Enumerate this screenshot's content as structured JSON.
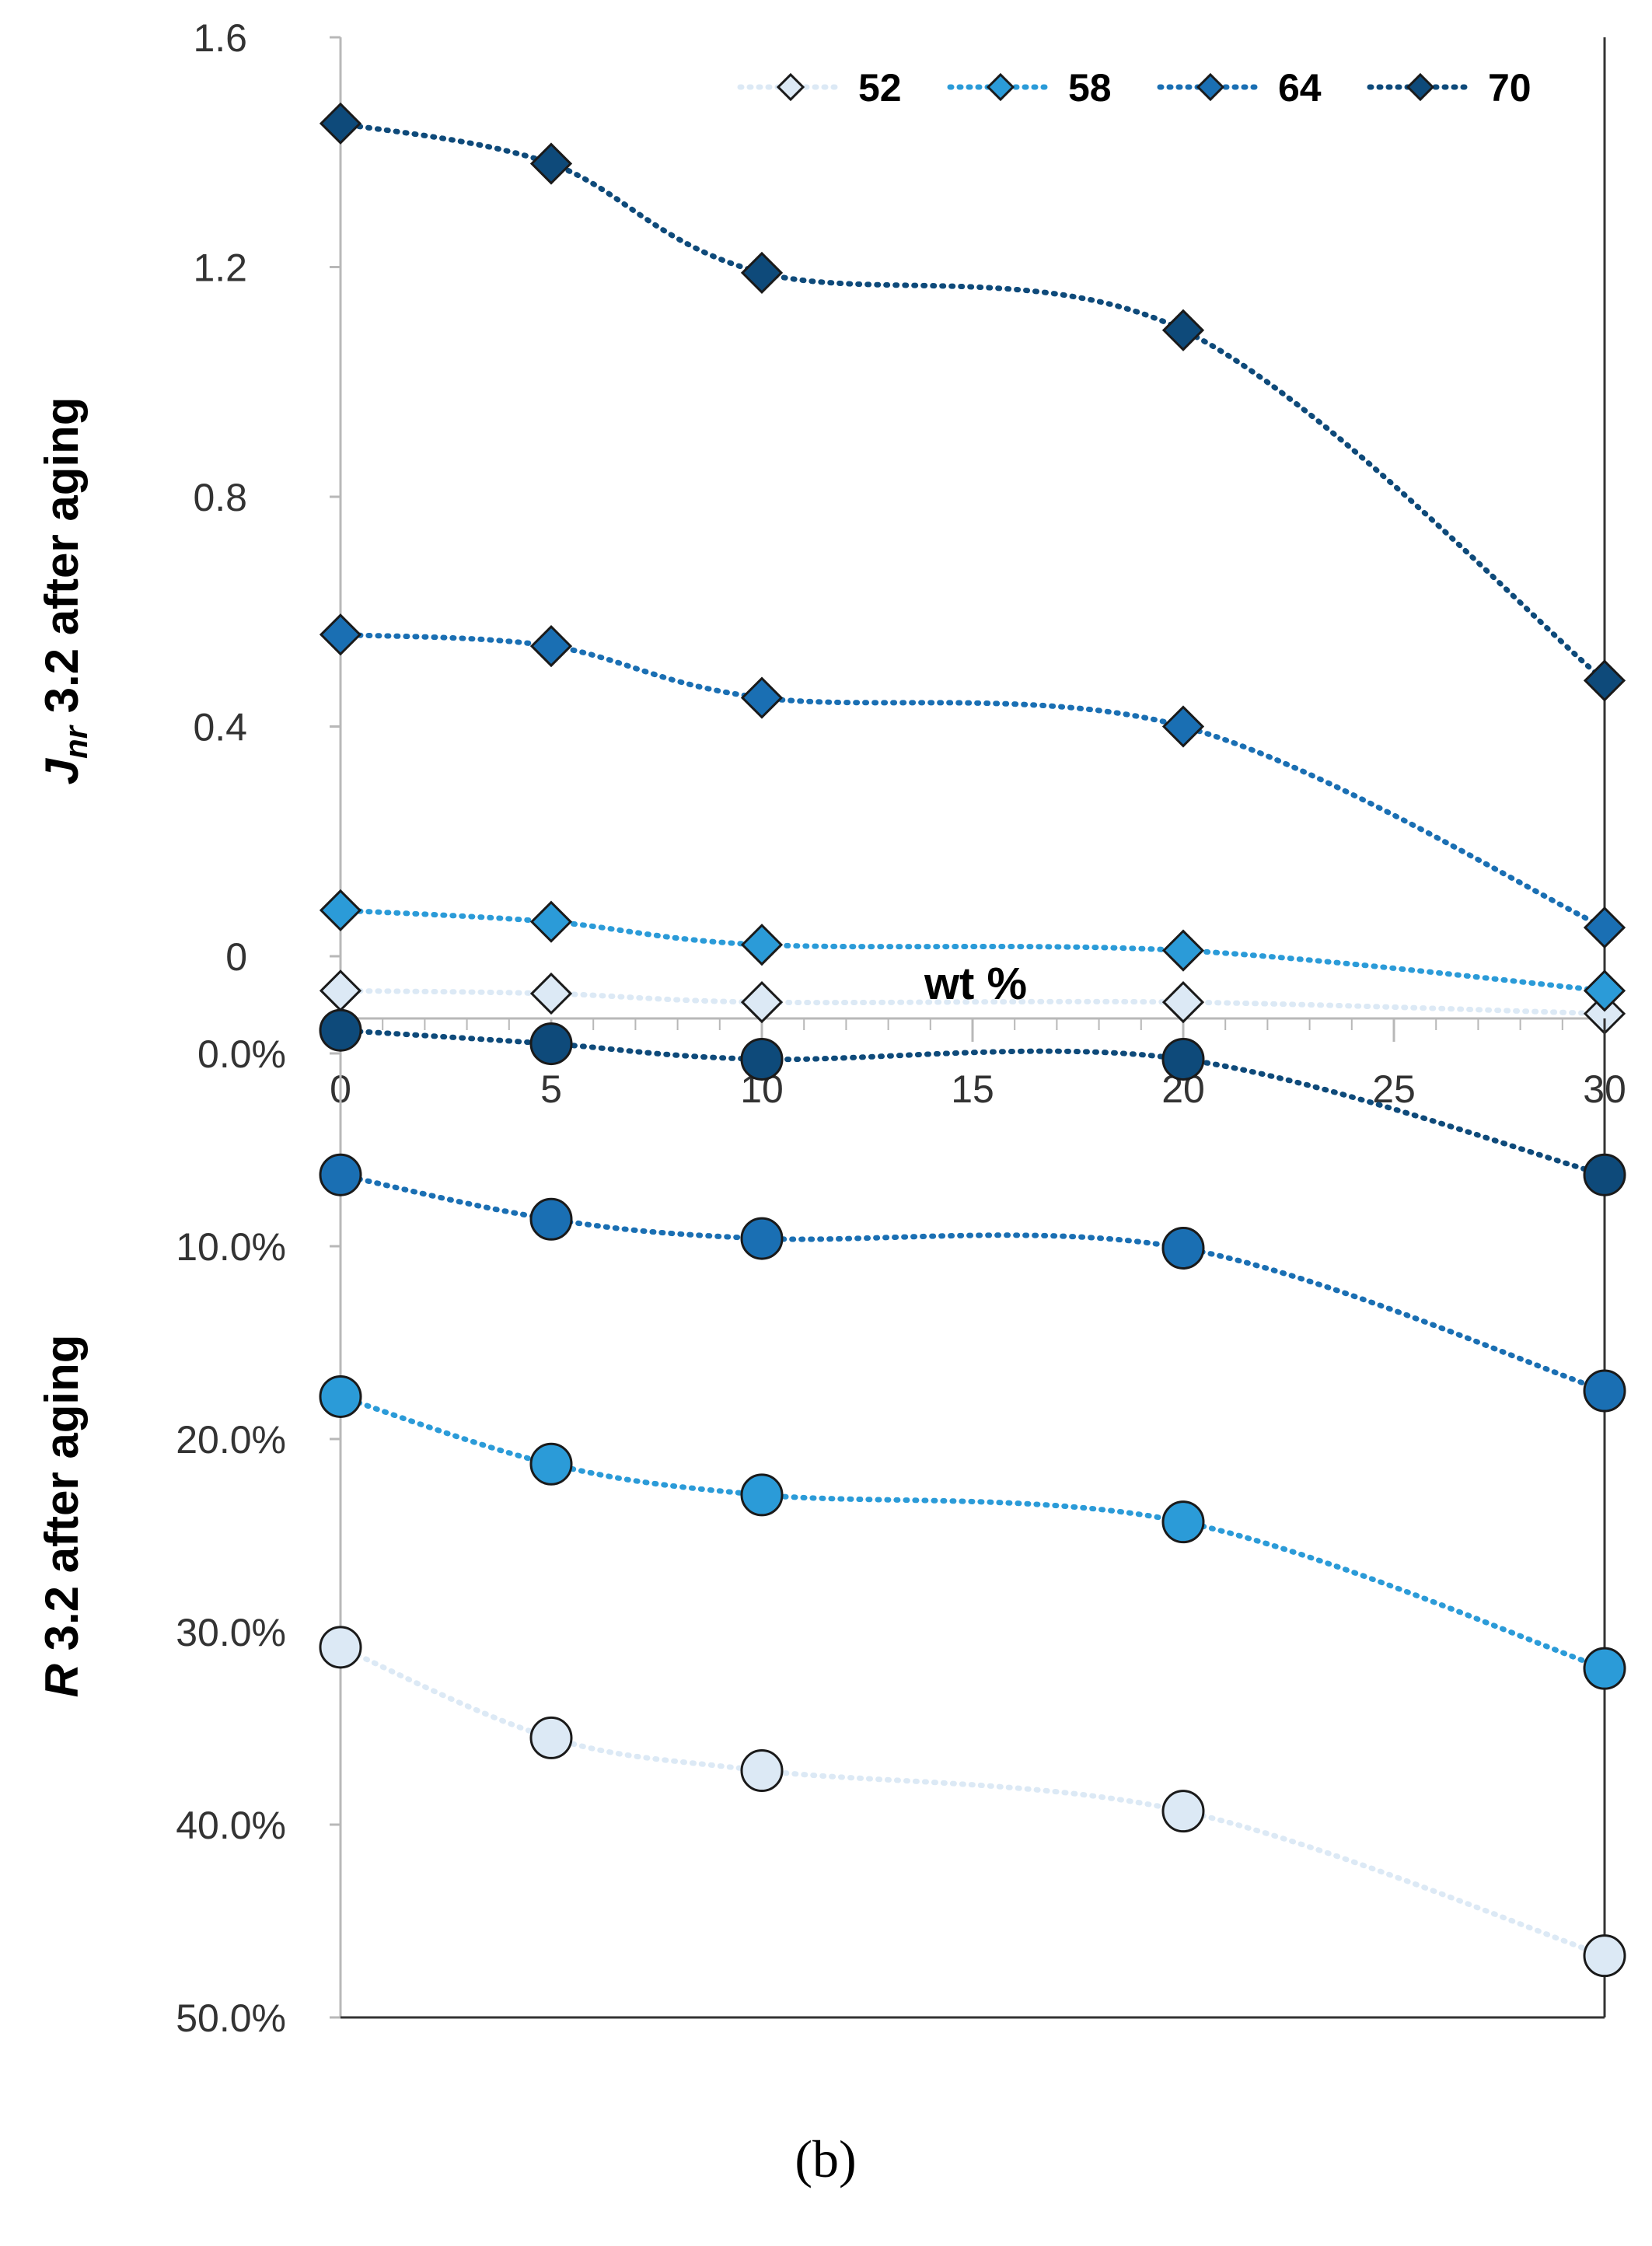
{
  "chart_data": [
    {
      "type": "line",
      "panel": "top",
      "marker": "diamond",
      "ylabel_prefix": "J",
      "ylabel_sub": "nr",
      "ylabel_rest": " 3.2 after aging",
      "xlabel": "wt %",
      "x": [
        0,
        5,
        10,
        20,
        30
      ],
      "x_ticks": [
        "0",
        "5",
        "10",
        "15",
        "20",
        "25",
        "30"
      ],
      "xlim": [
        0,
        30
      ],
      "ylim": [
        -0.1,
        1.6
      ],
      "y_ticks": [
        "1.6",
        "1.2",
        "0.8",
        "0.4",
        "0"
      ],
      "y_tick_values": [
        1.6,
        1.2,
        0.8,
        0.4,
        0
      ],
      "series": [
        {
          "name": "52",
          "color": "#dce9f5",
          "values": [
            -0.06,
            -0.065,
            -0.08,
            -0.08,
            -0.1
          ]
        },
        {
          "name": "58",
          "color": "#2b9bd8",
          "values": [
            0.08,
            0.06,
            0.02,
            0.01,
            -0.06
          ]
        },
        {
          "name": "64",
          "color": "#1a6fb3",
          "values": [
            0.56,
            0.54,
            0.45,
            0.4,
            0.05
          ]
        },
        {
          "name": "70",
          "color": "#0e4a7a",
          "values": [
            1.45,
            1.38,
            1.19,
            1.09,
            0.48
          ]
        }
      ],
      "legend": [
        "52",
        "58",
        "64",
        "70"
      ],
      "legend_position": "top-right"
    },
    {
      "type": "line",
      "panel": "bottom",
      "marker": "circle",
      "ylabel_prefix": "R",
      "ylabel_rest": " 3.2 after aging",
      "x": [
        0,
        5,
        10,
        20,
        30
      ],
      "y_inverted": true,
      "ylim": [
        0,
        50
      ],
      "y_ticks": [
        "0.0%",
        "10.0%",
        "20.0%",
        "30.0%",
        "40.0%",
        "50.0%"
      ],
      "y_tick_values": [
        0,
        10,
        20,
        30,
        40,
        50
      ],
      "series": [
        {
          "name": "52",
          "color": "#dce9f5",
          "values": [
            30.8,
            35.5,
            37.2,
            39.3,
            46.8
          ]
        },
        {
          "name": "58",
          "color": "#2b9bd8",
          "values": [
            17.8,
            21.3,
            22.9,
            24.3,
            31.9
          ]
        },
        {
          "name": "64",
          "color": "#1a6fb3",
          "values": [
            6.3,
            8.6,
            9.6,
            10.1,
            17.5
          ]
        },
        {
          "name": "70",
          "color": "#0e4a7a",
          "values": [
            -1.2,
            -0.5,
            0.3,
            0.3,
            6.3
          ]
        }
      ]
    }
  ],
  "caption": "(b)"
}
